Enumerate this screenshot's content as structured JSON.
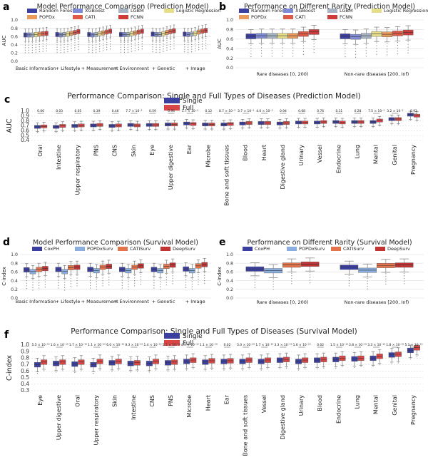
{
  "colors": {
    "rf": "#3b3fa0",
    "xgb": "#7f8bd6",
    "lgbm": "#a6b3c2",
    "lr": "#e6de8a",
    "popdx": "#ea9a5a",
    "cati": "#dd5a46",
    "fcnn": "#cf3b3b",
    "single": "#3b3fa0",
    "full": "#d94646",
    "coxph": "#3b3fa0",
    "popdxsurv": "#8aaee0",
    "catisurv": "#e5744c",
    "deepsurv": "#c23434"
  },
  "panels": {
    "a": {
      "letter": "a",
      "chart_data": {
        "type": "box",
        "title": "Model Performance Comparison (Prediction Model)",
        "ylabel": "AUC",
        "ylim": [
          0.0,
          1.0
        ],
        "yticks": [
          "0.0",
          "0.2",
          "0.4",
          "0.6",
          "0.8",
          "1.0"
        ],
        "categories": [
          "Basic Information",
          "+ Lifestyle",
          "+ Measurement",
          "+ Environment",
          "+ Genetic",
          "+ Image"
        ],
        "legend": [
          "Random Forest",
          "XGBoost",
          "LGBM",
          "Logistic Regression",
          "POPDx",
          "CATI",
          "FCNN"
        ],
        "series_keys": [
          "rf",
          "xgb",
          "lgbm",
          "lr",
          "popdx",
          "cati",
          "fcnn"
        ],
        "series": [
          {
            "name": "Random Forest",
            "values": [
              0.64,
              0.65,
              0.65,
              0.65,
              0.66,
              0.66
            ]
          },
          {
            "name": "XGBoost",
            "values": [
              0.64,
              0.64,
              0.64,
              0.65,
              0.65,
              0.65
            ]
          },
          {
            "name": "LGBM",
            "values": [
              0.64,
              0.65,
              0.65,
              0.65,
              0.65,
              0.66
            ]
          },
          {
            "name": "Logistic Regression",
            "values": [
              0.65,
              0.66,
              0.67,
              0.67,
              0.67,
              0.68
            ]
          },
          {
            "name": "POPDx",
            "values": [
              0.66,
              0.68,
              0.69,
              0.69,
              0.7,
              0.71
            ]
          },
          {
            "name": "CATI",
            "values": [
              0.67,
              0.7,
              0.71,
              0.71,
              0.72,
              0.73
            ]
          },
          {
            "name": "FCNN",
            "values": [
              0.68,
              0.72,
              0.73,
              0.73,
              0.74,
              0.75
            ]
          }
        ]
      }
    },
    "b": {
      "letter": "b",
      "chart_data": {
        "type": "box",
        "title": "Performance on Different Rarity (Prediction Model)",
        "ylabel": "AUC",
        "ylim": [
          0.0,
          1.0
        ],
        "yticks": [
          "0.0",
          "0.2",
          "0.4",
          "0.6",
          "0.8",
          "1.0"
        ],
        "categories": [
          "Rare diseases [0, 200)",
          "Non-rare diseases [200, Inf)"
        ],
        "legend": [
          "Random Forest",
          "XGBoost",
          "LGBM",
          "Logistic Regression",
          "POPDx",
          "CATI",
          "FCNN"
        ],
        "series_keys": [
          "rf",
          "xgb",
          "lgbm",
          "lr",
          "popdx",
          "cati",
          "fcnn"
        ],
        "series": [
          {
            "name": "Random Forest",
            "values": [
              0.66,
              0.66
            ]
          },
          {
            "name": "XGBoost",
            "values": [
              0.67,
              0.65
            ]
          },
          {
            "name": "LGBM",
            "values": [
              0.67,
              0.67
            ]
          },
          {
            "name": "Logistic Regression",
            "values": [
              0.67,
              0.71
            ]
          },
          {
            "name": "POPDx",
            "values": [
              0.67,
              0.7
            ]
          },
          {
            "name": "CATI",
            "values": [
              0.71,
              0.72
            ]
          },
          {
            "name": "FCNN",
            "values": [
              0.75,
              0.74
            ]
          }
        ]
      }
    },
    "c": {
      "letter": "c",
      "chart_data": {
        "type": "box",
        "title": "Performance Comparison: Single and Full Types of Diseases (Prediction Model)",
        "ylabel": "AUC",
        "ylim": [
          0.4,
          1.0
        ],
        "yticks": [
          "0.4",
          "0.5",
          "0.6",
          "0.7",
          "0.8",
          "0.9",
          "1.0"
        ],
        "legend": [
          "Single",
          "Full"
        ],
        "series_keys": [
          "single",
          "full"
        ],
        "categories": [
          "Oral",
          "Intestine",
          "Upper respiratory",
          "PNS",
          "CNS",
          "Skin",
          "Eye",
          "Upper digestive",
          "Ear",
          "Microbe",
          "Bone and soft tissues",
          "Blood",
          "Heart",
          "Digestive gland",
          "Urinary",
          "Vessel",
          "Endocrine",
          "Lung",
          "Mental",
          "Genital",
          "Pregnancy"
        ],
        "pvalues": [
          "0.06",
          "0.03",
          "0.05",
          "0.39",
          "0.46",
          "7.7 × 10⁻³",
          "0.59",
          "0.94",
          "1.7 × 10⁻³",
          "0.12",
          "8.7 × 10⁻³",
          "3.7 × 10⁻³",
          "4.0 × 10⁻³",
          "0.94",
          "0.68",
          "0.76",
          "0.11",
          "0.28",
          "7.5 × 10⁻³",
          "3.2 × 10⁻³",
          "0.93"
        ],
        "series": [
          {
            "name": "Single",
            "values": [
              0.68,
              0.68,
              0.7,
              0.71,
              0.7,
              0.72,
              0.72,
              0.73,
              0.75,
              0.73,
              0.73,
              0.75,
              0.76,
              0.75,
              0.77,
              0.77,
              0.78,
              0.78,
              0.78,
              0.84,
              0.93
            ]
          },
          {
            "name": "Full",
            "values": [
              0.69,
              0.7,
              0.71,
              0.72,
              0.71,
              0.71,
              0.72,
              0.73,
              0.74,
              0.73,
              0.74,
              0.76,
              0.76,
              0.76,
              0.77,
              0.78,
              0.77,
              0.78,
              0.81,
              0.84,
              0.91
            ]
          }
        ]
      }
    },
    "d": {
      "letter": "d",
      "chart_data": {
        "type": "box",
        "title": "Model Performance Comparison (Survival Model)",
        "ylabel": "C-index",
        "ylim": [
          0.0,
          1.0
        ],
        "yticks": [
          "0.0",
          "0.2",
          "0.4",
          "0.6",
          "0.8",
          "1.0"
        ],
        "categories": [
          "Basic Information",
          "+ Lifestyle",
          "+ Measurement",
          "+ Environment",
          "+ Genetic",
          "+ Image"
        ],
        "legend": [
          "CoxPH",
          "POPDxSurv",
          "CATISurv",
          "DeepSurv"
        ],
        "series_keys": [
          "coxph",
          "popdxsurv",
          "catisurv",
          "deepsurv"
        ],
        "series": [
          {
            "name": "CoxPH",
            "values": [
              0.65,
              0.66,
              0.66,
              0.66,
              0.66,
              0.67
            ]
          },
          {
            "name": "POPDxSurv",
            "values": [
              0.61,
              0.61,
              0.63,
              0.63,
              0.63,
              0.63
            ]
          },
          {
            "name": "CATISurv",
            "values": [
              0.66,
              0.7,
              0.71,
              0.71,
              0.73,
              0.74
            ]
          },
          {
            "name": "DeepSurv",
            "values": [
              0.68,
              0.71,
              0.73,
              0.74,
              0.76,
              0.77
            ]
          }
        ]
      }
    },
    "e": {
      "letter": "e",
      "chart_data": {
        "type": "box",
        "title": "Performance on Different Rarity (Survival Model)",
        "ylabel": "C-index",
        "ylim": [
          0.0,
          1.0
        ],
        "yticks": [
          "0.0",
          "0.2",
          "0.4",
          "0.6",
          "0.8",
          "1.0"
        ],
        "categories": [
          "Rare diseases [0, 200)",
          "Non-rare diseases [200, Inf)"
        ],
        "legend": [
          "CoxPH",
          "POPDxSurv",
          "CATISurv",
          "DeepSurv"
        ],
        "series_keys": [
          "coxph",
          "popdxsurv",
          "catisurv",
          "deepsurv"
        ],
        "series": [
          {
            "name": "CoxPH",
            "values": [
              0.67,
              0.71
            ]
          },
          {
            "name": "POPDxSurv",
            "values": [
              0.63,
              0.64
            ]
          },
          {
            "name": "CATISurv",
            "values": [
              0.76,
              0.75
            ]
          },
          {
            "name": "DeepSurv",
            "values": [
              0.78,
              0.76
            ]
          }
        ]
      }
    },
    "f": {
      "letter": "f",
      "chart_data": {
        "type": "box",
        "title": "Performance Comparison: Single and Full Types of Diseases (Survival Model)",
        "ylabel": "C-index",
        "ylim": [
          0.3,
          1.0
        ],
        "yticks": [
          "0.3",
          "0.4",
          "0.5",
          "0.6",
          "0.7",
          "0.8",
          "0.9",
          "1.0"
        ],
        "legend": [
          "Single",
          "Full"
        ],
        "series_keys": [
          "single",
          "full"
        ],
        "categories": [
          "Eye",
          "Upper digestive",
          "Oral",
          "Upper respiratory",
          "Skin",
          "Intestine",
          "CNS",
          "PNS",
          "Microbe",
          "Heart",
          "Ear",
          "Bone and soft tissues",
          "Vessel",
          "Digestive gland",
          "Urinary",
          "Blood",
          "Endocrine",
          "Lung",
          "Mental",
          "Genital",
          "Pregnancy"
        ],
        "pvalues": [
          "5.5 × 10⁻¹⁰",
          "1.6 × 10⁻¹⁰",
          "1.7 × 10⁻¹⁰",
          "1.1 × 10⁻¹⁰",
          "6.0 × 10⁻¹⁰",
          "9.3 × 10⁻¹⁰",
          "1.4 × 10⁻¹⁰",
          "5.1 × 10⁻¹⁰",
          "4.9 × 10⁻¹⁰",
          "1.1 × 10⁻¹⁰",
          "0.02",
          "5.0 × 10⁻¹⁰",
          "1.7 × 10⁻¹⁰",
          "3.3 × 10⁻¹⁰",
          "1.6 × 10⁻¹⁰",
          "0.02",
          "1.5 × 10⁻¹⁰",
          "3.8 × 10⁻¹⁰",
          "3.3 × 10⁻¹⁰",
          "1.8 × 10⁻¹⁰",
          "5.1 × 10⁻¹⁰"
        ],
        "series": [
          {
            "name": "Single",
            "values": [
              0.7,
              0.72,
              0.71,
              0.7,
              0.73,
              0.72,
              0.72,
              0.73,
              0.75,
              0.74,
              0.75,
              0.75,
              0.75,
              0.77,
              0.75,
              0.77,
              0.78,
              0.79,
              0.8,
              0.85,
              0.92
            ]
          },
          {
            "name": "Full",
            "values": [
              0.74,
              0.74,
              0.74,
              0.75,
              0.75,
              0.73,
              0.75,
              0.74,
              0.77,
              0.76,
              0.76,
              0.77,
              0.77,
              0.78,
              0.77,
              0.78,
              0.8,
              0.8,
              0.83,
              0.86,
              0.96
            ]
          }
        ]
      }
    }
  }
}
